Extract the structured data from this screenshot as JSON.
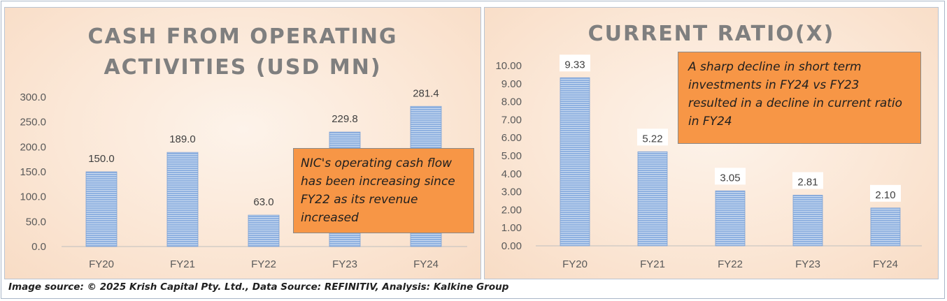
{
  "chart_data": [
    {
      "type": "bar",
      "title": "CASH FROM OPERATING ACTIVITIES (USD MN)",
      "categories": [
        "FY20",
        "FY21",
        "FY22",
        "FY23",
        "FY24"
      ],
      "values": [
        150.0,
        189.0,
        63.0,
        229.8,
        281.4
      ],
      "value_labels": [
        "150.0",
        "189.0",
        "63.0",
        "229.8",
        "281.4"
      ],
      "yticks": [
        "0.0",
        "50.0",
        "100.0",
        "150.0",
        "200.0",
        "250.0",
        "300.0"
      ],
      "ylim": [
        0,
        300
      ],
      "xlabel": "",
      "ylabel": "",
      "bar_color": "#8fb1e0",
      "annotation": "NIC's operating cash flow has been increasing since FY22 as its revenue increased"
    },
    {
      "type": "bar",
      "title": "CURRENT RATIO(X)",
      "categories": [
        "FY20",
        "FY21",
        "FY22",
        "FY23",
        "FY24"
      ],
      "values": [
        9.33,
        5.22,
        3.05,
        2.81,
        2.1
      ],
      "value_labels": [
        "9.33",
        "5.22",
        "3.05",
        "2.81",
        "2.10"
      ],
      "yticks": [
        "0.00",
        "1.00",
        "2.00",
        "3.00",
        "4.00",
        "5.00",
        "6.00",
        "7.00",
        "8.00",
        "9.00",
        "10.00"
      ],
      "ylim": [
        0,
        10
      ],
      "xlabel": "",
      "ylabel": "",
      "bar_color": "#8fb1e0",
      "annotation": "A sharp decline in short term investments in FY24 vs FY23 resulted in a decline in current ratio in FY24"
    }
  ],
  "colors": {
    "bar": "#8fb1e0",
    "callout": "#f79646",
    "title": "#7f7f7f"
  },
  "footer": "Image source: © 2025 Krish Capital Pty. Ltd., Data Source: REFINITIV, Analysis: Kalkine Group"
}
